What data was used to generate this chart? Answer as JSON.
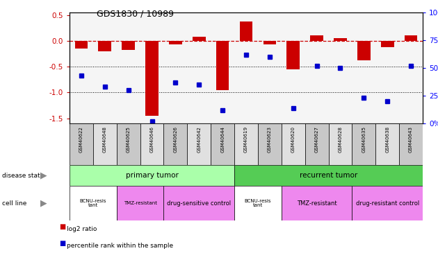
{
  "title": "GDS1830 / 10989",
  "samples": [
    "GSM40622",
    "GSM40648",
    "GSM40625",
    "GSM40646",
    "GSM40626",
    "GSM40642",
    "GSM40644",
    "GSM40619",
    "GSM40623",
    "GSM40620",
    "GSM40627",
    "GSM40628",
    "GSM40635",
    "GSM40638",
    "GSM40643"
  ],
  "log2_ratio": [
    -0.15,
    -0.2,
    -0.18,
    -1.45,
    -0.07,
    0.08,
    -0.95,
    0.38,
    -0.07,
    -0.55,
    0.1,
    0.05,
    -0.38,
    -0.12,
    0.1
  ],
  "percentile_rank": [
    43,
    33,
    30,
    2,
    37,
    35,
    12,
    62,
    60,
    14,
    52,
    50,
    23,
    20,
    52
  ],
  "disease_state_order": [
    "primary tumor",
    "recurrent tumor"
  ],
  "disease_state": {
    "primary tumor": [
      0,
      7
    ],
    "recurrent tumor": [
      7,
      15
    ]
  },
  "cell_line_groups": [
    {
      "label": "BCNU-resis\ntant",
      "start": 0,
      "end": 2,
      "color": "#ffffff"
    },
    {
      "label": "TMZ-resistant",
      "start": 2,
      "end": 4,
      "color": "#ee88ee"
    },
    {
      "label": "drug-sensitive control",
      "start": 4,
      "end": 7,
      "color": "#ee88ee"
    },
    {
      "label": "BCNU-resis\ntant",
      "start": 7,
      "end": 9,
      "color": "#ffffff"
    },
    {
      "label": "TMZ-resistant",
      "start": 9,
      "end": 12,
      "color": "#ee88ee"
    },
    {
      "label": "drug-resistant control",
      "start": 12,
      "end": 15,
      "color": "#ee88ee"
    }
  ],
  "bar_color": "#cc0000",
  "dot_color": "#0000cc",
  "primary_color": "#aaffaa",
  "recurrent_color": "#55cc55",
  "ylim_left": [
    -1.6,
    0.55
  ],
  "ylim_right": [
    0,
    100
  ],
  "left_ticks": [
    0.5,
    0.0,
    -0.5,
    -1.0,
    -1.5
  ],
  "right_ticks": [
    0,
    25,
    50,
    75,
    100
  ],
  "dotted_lines": [
    -0.5,
    -1.0
  ],
  "chart_bg": "#f5f5f5",
  "label_gray_even": "#c8c8c8",
  "label_gray_odd": "#e0e0e0"
}
